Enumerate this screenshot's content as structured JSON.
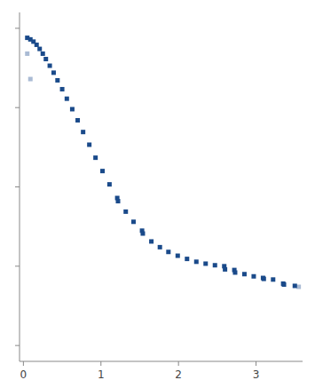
{
  "chart_data": {
    "type": "scatter",
    "marker": "square",
    "tick_labels": "x",
    "xlim": [
      -0.05,
      3.6
    ],
    "ylim": [
      -0.05,
      1.05
    ],
    "xticks": [
      0,
      1,
      2,
      3
    ],
    "yticks": [
      0,
      0.25,
      0.5,
      0.75,
      1.0
    ],
    "series": [
      {
        "color": "#aabbd4",
        "x": [
          0.05,
          0.09,
          3.55
        ],
        "values": [
          0.92,
          0.84,
          0.185
        ]
      },
      {
        "color": "#1a4a8a",
        "x": [
          0.05,
          0.09,
          0.13,
          0.17,
          0.21,
          0.25,
          0.29,
          0.34,
          0.39,
          0.44,
          0.5,
          0.56,
          0.63,
          0.7,
          0.77,
          0.85,
          0.93,
          1.02,
          1.11,
          1.21,
          1.22,
          1.32,
          1.42,
          1.53,
          1.54,
          1.65,
          1.76,
          1.87,
          1.99,
          2.11,
          2.23,
          2.35,
          2.47,
          2.59,
          2.6,
          2.72,
          2.73,
          2.85,
          2.97,
          3.09,
          3.1,
          3.22,
          3.35,
          3.36,
          3.5
        ],
        "values": [
          0.97,
          0.965,
          0.958,
          0.948,
          0.935,
          0.92,
          0.903,
          0.882,
          0.86,
          0.836,
          0.808,
          0.778,
          0.745,
          0.71,
          0.673,
          0.633,
          0.592,
          0.55,
          0.508,
          0.465,
          0.455,
          0.422,
          0.39,
          0.362,
          0.353,
          0.328,
          0.31,
          0.295,
          0.283,
          0.273,
          0.264,
          0.258,
          0.253,
          0.25,
          0.24,
          0.238,
          0.23,
          0.225,
          0.218,
          0.213,
          0.21,
          0.208,
          0.195,
          0.192,
          0.188
        ]
      }
    ]
  }
}
